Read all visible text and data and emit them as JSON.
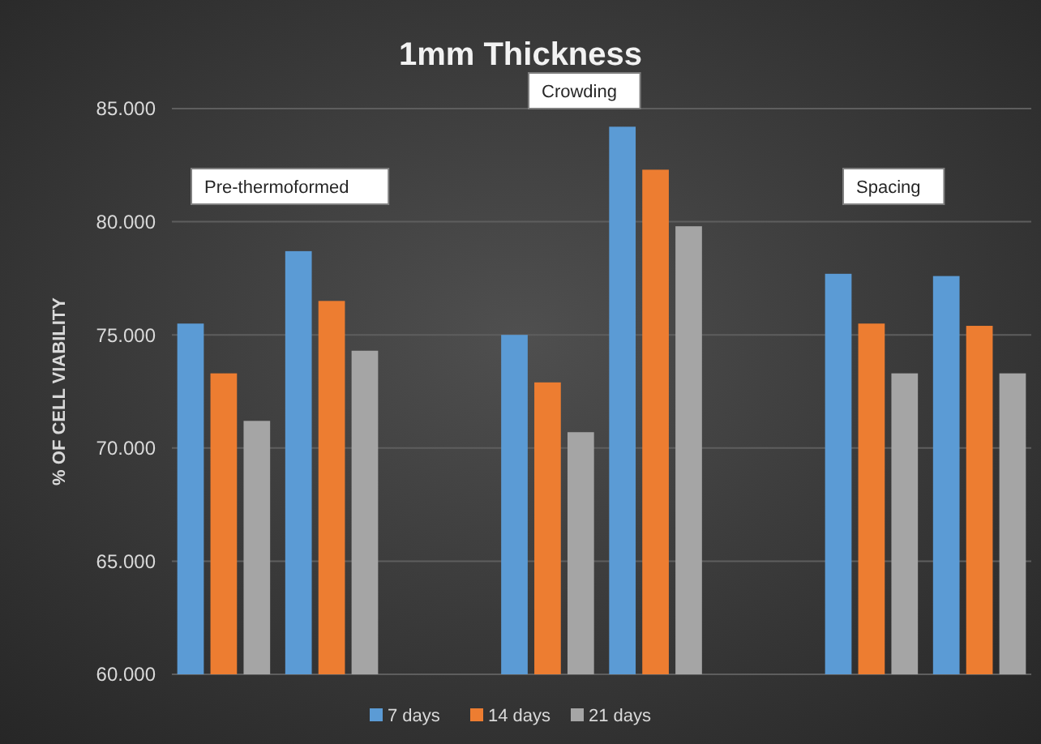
{
  "chart_data": {
    "type": "bar",
    "title": "1mm Thickness",
    "ylabel": "% OF CELL VIABILITY",
    "categories": [
      null,
      null,
      null,
      null,
      null,
      null,
      null,
      null
    ],
    "series": [
      {
        "name": "7 days",
        "color": "#5b9bd5",
        "values": [
          75.5,
          78.7,
          null,
          75.0,
          84.2,
          null,
          77.7,
          77.6
        ]
      },
      {
        "name": "14 days",
        "color": "#ed7d31",
        "values": [
          73.3,
          76.5,
          null,
          72.9,
          82.3,
          null,
          75.5,
          75.4
        ]
      },
      {
        "name": "21 days",
        "color": "#a5a5a5",
        "values": [
          71.2,
          74.3,
          null,
          70.7,
          79.8,
          null,
          73.3,
          73.3
        ]
      }
    ],
    "ylim": [
      60,
      85
    ],
    "yticks": [
      {
        "value": 60,
        "label": "60.000"
      },
      {
        "value": 65,
        "label": "65.000"
      },
      {
        "value": 70,
        "label": "70.000"
      },
      {
        "value": 75,
        "label": "75.000"
      },
      {
        "value": 80,
        "label": "80.000"
      },
      {
        "value": 85,
        "label": "85.000"
      }
    ],
    "grid": "y",
    "legend": "bottom",
    "tick_labels": "y",
    "annotations": [
      "Pre-thermoformed",
      "Crowding",
      "Spacing"
    ]
  }
}
